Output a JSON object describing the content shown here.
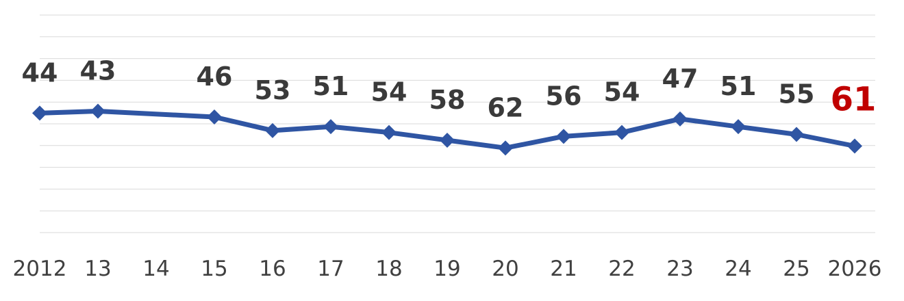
{
  "chart_data": {
    "type": "line",
    "categories": [
      "2012",
      "13",
      "14",
      "15",
      "16",
      "17",
      "18",
      "19",
      "20",
      "21",
      "22",
      "23",
      "24",
      "25",
      "2026"
    ],
    "series": [
      {
        "values": [
          44,
          43,
          null,
          46,
          53,
          51,
          54,
          58,
          62,
          56,
          54,
          47,
          51,
          55,
          61
        ]
      }
    ],
    "title": "",
    "xlabel": "",
    "ylabel": "",
    "y_axis_reversed": true,
    "y_axis_visible": false,
    "grid": true,
    "legend": "none",
    "highlight_category": "2026",
    "colors": {
      "line": "#2f55a3",
      "marker": "#2f55a3",
      "label": "#3a3a3a",
      "highlight_label": "#c00000",
      "tick_label": "#404040",
      "grid": "#d9d9d9"
    }
  }
}
